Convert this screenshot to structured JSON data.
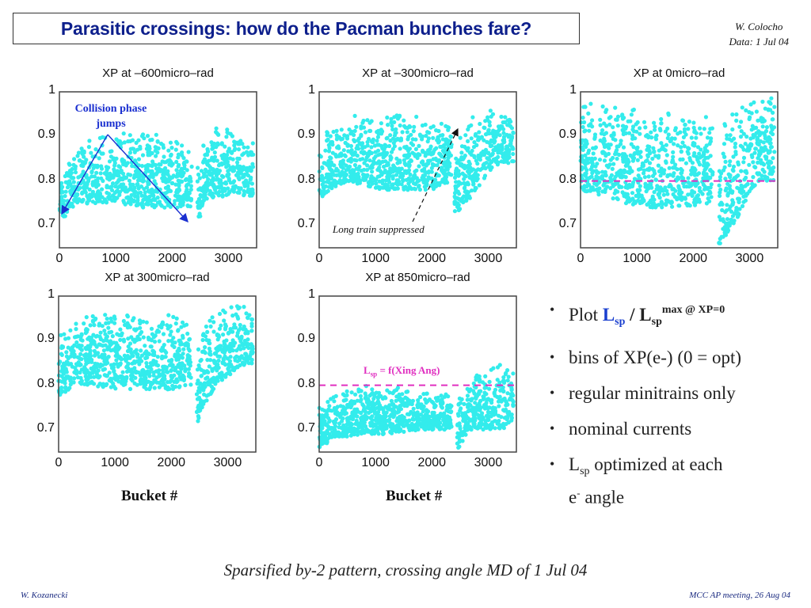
{
  "header": {
    "title": "Parasitic crossings: how do the Pacman bunches fare?",
    "author": "W. Colocho",
    "data_date": "Data: 1 Jul 04"
  },
  "colors": {
    "scatter": "#33ecec",
    "title_blue": "#0d1f8c",
    "annotation_blue": "#1a2fd0",
    "reference_pink": "#e030c0"
  },
  "chart_data": [
    {
      "type": "scatter",
      "title": "XP at –600 micro–rad",
      "xlabel": "",
      "ylabel": "",
      "xlim": [
        0,
        3500
      ],
      "ylim": [
        0.65,
        1.0
      ],
      "xticks": [
        "0",
        "1000",
        "2000",
        "3000"
      ],
      "yticks": [
        "1",
        "0.9",
        "0.8",
        "0.7"
      ],
      "bands": [
        {
          "x": [
            0,
            200,
            600,
            1000,
            1500,
            2000,
            2350
          ],
          "upper": [
            0.8,
            0.86,
            0.9,
            0.91,
            0.91,
            0.9,
            0.88
          ],
          "lower": [
            0.7,
            0.74,
            0.75,
            0.75,
            0.74,
            0.74,
            0.74
          ]
        },
        {
          "x": [
            2450,
            2600,
            2800,
            3000,
            3200,
            3450
          ],
          "upper": [
            0.84,
            0.9,
            0.93,
            0.92,
            0.9,
            0.89
          ],
          "lower": [
            0.7,
            0.76,
            0.76,
            0.77,
            0.77,
            0.76
          ]
        }
      ],
      "annotation": "Collision phase jumps"
    },
    {
      "type": "scatter",
      "title": "XP at –300 micro–rad",
      "xlabel": "",
      "ylabel": "",
      "xlim": [
        0,
        3500
      ],
      "ylim": [
        0.65,
        1.0
      ],
      "xticks": [
        "0",
        "1000",
        "2000",
        "3000"
      ],
      "yticks": [
        "1",
        "0.9",
        "0.8",
        "0.7"
      ],
      "bands": [
        {
          "x": [
            0,
            200,
            500,
            1000,
            1500,
            2000,
            2350
          ],
          "upper": [
            0.88,
            0.93,
            0.95,
            0.96,
            0.95,
            0.95,
            0.92
          ],
          "lower": [
            0.75,
            0.78,
            0.8,
            0.78,
            0.78,
            0.78,
            0.8
          ]
        },
        {
          "x": [
            2400,
            2600,
            2800,
            3000,
            3200,
            3450
          ],
          "upper": [
            0.86,
            0.94,
            0.96,
            0.96,
            0.96,
            0.95
          ],
          "lower": [
            0.72,
            0.75,
            0.78,
            0.82,
            0.84,
            0.84
          ]
        }
      ],
      "annotation": "Long train suppressed"
    },
    {
      "type": "scatter",
      "title": "XP at 0 micro–rad",
      "xlabel": "",
      "ylabel": "",
      "xlim": [
        0,
        3500
      ],
      "ylim": [
        0.65,
        1.0
      ],
      "xticks": [
        "0",
        "1000",
        "2000",
        "3000"
      ],
      "yticks": [
        "1",
        "0.9",
        "0.8",
        "0.7"
      ],
      "reference_line": 0.8,
      "bands": [
        {
          "x": [
            0,
            300,
            800,
            1300,
            1800,
            2350
          ],
          "upper": [
            0.97,
            0.98,
            0.97,
            0.96,
            0.96,
            0.95
          ],
          "lower": [
            0.78,
            0.77,
            0.75,
            0.74,
            0.74,
            0.75
          ]
        },
        {
          "x": [
            2450,
            2600,
            2800,
            3000,
            3200,
            3450
          ],
          "upper": [
            0.88,
            0.96,
            0.98,
            0.98,
            1.0,
            1.0
          ],
          "lower": [
            0.65,
            0.68,
            0.72,
            0.77,
            0.8,
            0.8
          ]
        }
      ]
    },
    {
      "type": "scatter",
      "title": "XP at 300 micro–rad",
      "xlabel": "Bucket #",
      "ylabel": "",
      "xlim": [
        0,
        3500
      ],
      "ylim": [
        0.65,
        1.0
      ],
      "xticks": [
        "0",
        "1000",
        "2000",
        "3000"
      ],
      "yticks": [
        "1",
        "0.9",
        "0.8",
        "0.7"
      ],
      "bands": [
        {
          "x": [
            0,
            300,
            600,
            1000,
            1500,
            2000,
            2350
          ],
          "upper": [
            0.92,
            0.96,
            0.98,
            0.97,
            0.96,
            0.97,
            0.95
          ],
          "lower": [
            0.77,
            0.8,
            0.8,
            0.79,
            0.79,
            0.79,
            0.8
          ]
        },
        {
          "x": [
            2450,
            2600,
            2800,
            3000,
            3200,
            3450
          ],
          "upper": [
            0.88,
            0.94,
            0.97,
            0.99,
            0.98,
            0.97
          ],
          "lower": [
            0.71,
            0.76,
            0.8,
            0.82,
            0.84,
            0.85
          ]
        }
      ]
    },
    {
      "type": "scatter",
      "title": "XP at 850 micro–rad",
      "xlabel": "Bucket #",
      "ylabel": "",
      "xlim": [
        0,
        3500
      ],
      "ylim": [
        0.65,
        1.0
      ],
      "xticks": [
        "0",
        "1000",
        "2000",
        "3000"
      ],
      "yticks": [
        "1",
        "0.9",
        "0.8",
        "0.7"
      ],
      "reference_line": 0.8,
      "bands": [
        {
          "x": [
            0,
            300,
            800,
            1300,
            1800,
            2350
          ],
          "upper": [
            0.76,
            0.79,
            0.8,
            0.8,
            0.79,
            0.78
          ],
          "lower": [
            0.66,
            0.68,
            0.69,
            0.69,
            0.7,
            0.7
          ]
        },
        {
          "x": [
            2450,
            2650,
            2900,
            3100,
            3250,
            3450
          ],
          "upper": [
            0.78,
            0.8,
            0.84,
            0.84,
            0.85,
            0.83
          ],
          "lower": [
            0.65,
            0.7,
            0.7,
            0.7,
            0.7,
            0.72
          ]
        }
      ],
      "annotation": "L_sp = f(Xing Ang)"
    }
  ],
  "plot_titles": [
    "XP at –600micro–rad",
    "XP at –300micro–rad",
    "XP at 0micro–rad",
    "XP at 300micro–rad",
    "XP at 850micro–rad"
  ],
  "annotations": {
    "collision_line1": "Collision phase",
    "collision_line2": "jumps",
    "long_train": "Long train suppressed",
    "lsp_main": "L",
    "lsp_sub": "sp",
    "lsp_rest": " = f(Xing Ang)"
  },
  "axis": {
    "bucket_label": "Bucket #"
  },
  "bullets": {
    "b1_plot": "Plot ",
    "b1_L1": "L",
    "b1_sp1": "sp",
    "b1_slash": " / L",
    "b1_sp2": "sp",
    "b1_sup": "max @ XP=0",
    "b2": "bins of XP(e-) (0 = opt)",
    "b3": "regular minitrains only",
    "b4": "nominal currents",
    "b5_L": "L",
    "b5_sp": "sp",
    "b5_rest": " optimized at each",
    "b5_e": "e",
    "b5_sup": "-",
    "b5_angle": " angle"
  },
  "caption": "Sparsified by-2 pattern, crossing angle MD of 1 Jul 04",
  "footer": {
    "left": "W. Kozanecki",
    "right": "MCC AP meeting, 26 Aug 04"
  }
}
